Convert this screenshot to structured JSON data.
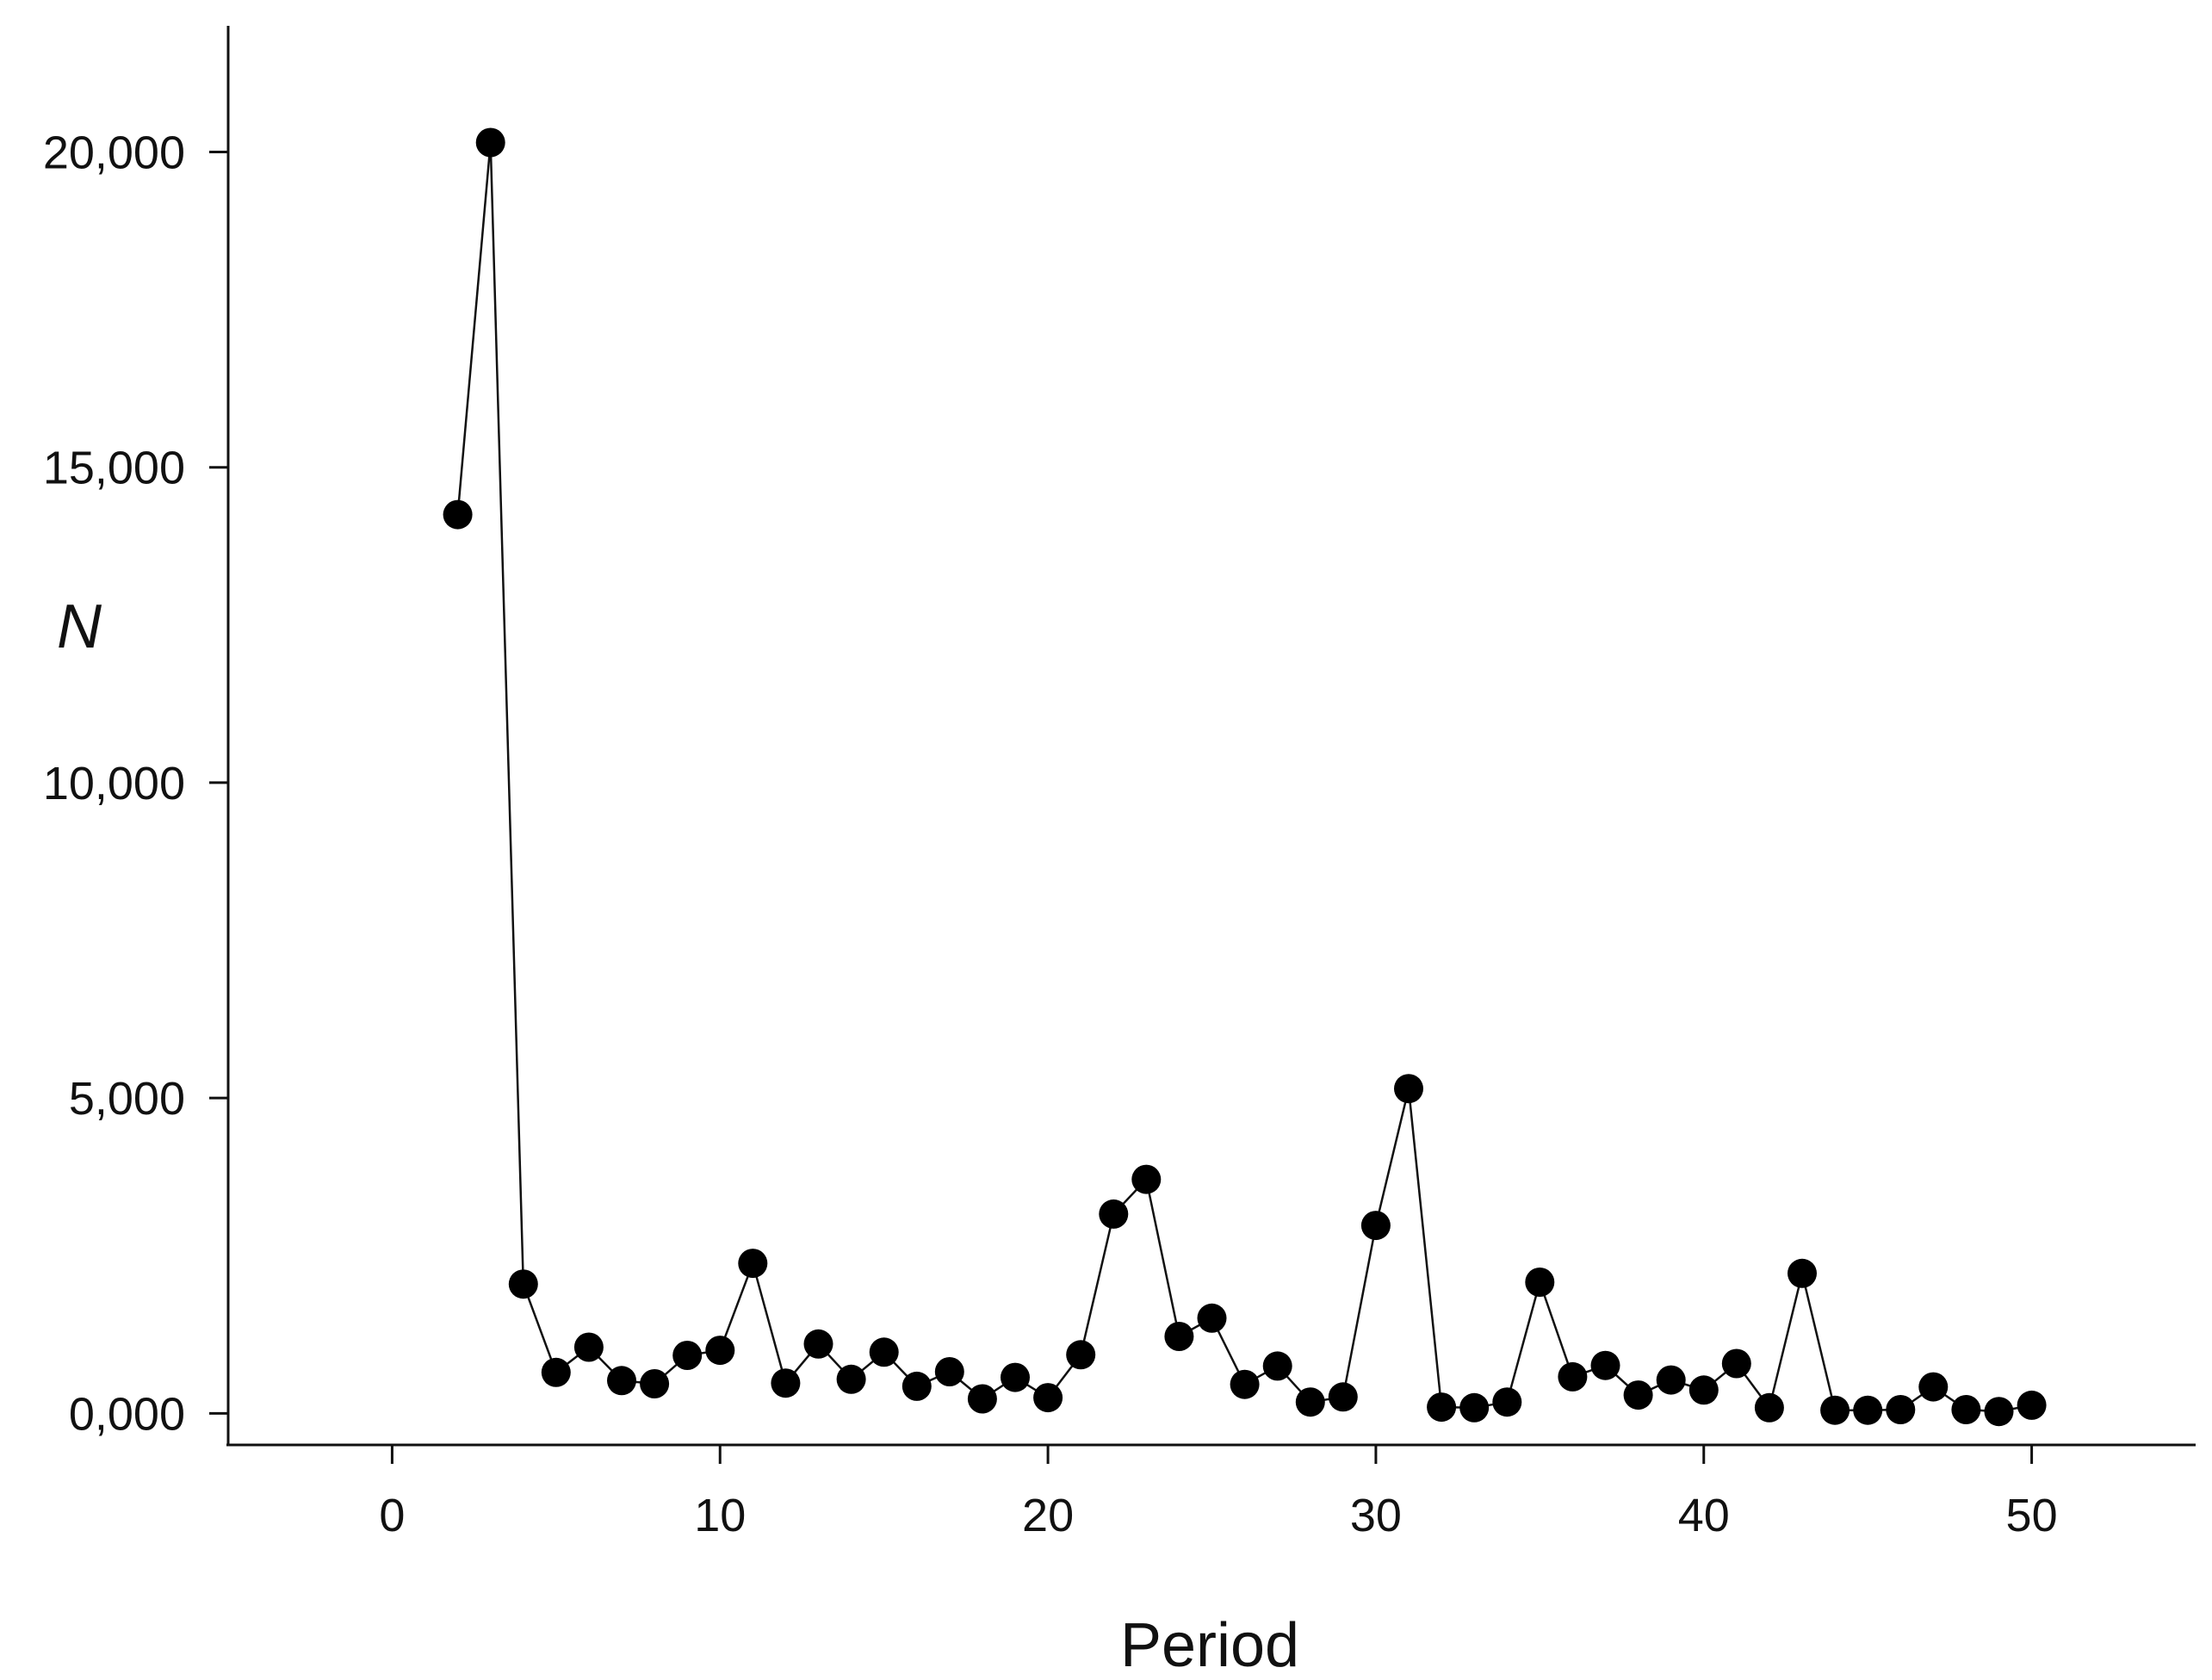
{
  "chart_data": {
    "type": "line",
    "title": "",
    "xlabel": "Period",
    "ylabel": "N",
    "xlim": [
      -5,
      55
    ],
    "ylim": [
      -500,
      22000
    ],
    "x_ticks": [
      0,
      10,
      20,
      30,
      40,
      50
    ],
    "x_tick_labels": [
      "0",
      "10",
      "20",
      "30",
      "40",
      "50"
    ],
    "y_ticks": [
      0,
      5000,
      10000,
      15000,
      20000
    ],
    "y_tick_labels": [
      "0,000",
      "5,000",
      "10,000",
      "15,000",
      "20,000"
    ],
    "grid": false,
    "legend": "none",
    "marker": "filled-circle",
    "colors": {
      "line": "#111111",
      "marker": "#000000",
      "axis": "#111111"
    },
    "series": [
      {
        "x": [
          2,
          3,
          4,
          5,
          6,
          7,
          8,
          9,
          10,
          11,
          12,
          13,
          14,
          15,
          16,
          17,
          18,
          19,
          20,
          21,
          22,
          23,
          24,
          25,
          26,
          27,
          28,
          29,
          30,
          31,
          32,
          33,
          34,
          35,
          36,
          37,
          38,
          39,
          40,
          41,
          42,
          43,
          44,
          45,
          46,
          47,
          48,
          49,
          50
        ],
        "y": [
          14250,
          20150,
          2050,
          650,
          1050,
          520,
          470,
          920,
          1000,
          2380,
          480,
          1100,
          540,
          970,
          430,
          660,
          230,
          570,
          250,
          930,
          3160,
          3710,
          1220,
          1510,
          460,
          750,
          180,
          260,
          2980,
          5150,
          100,
          90,
          180,
          2080,
          580,
          760,
          290,
          530,
          370,
          790,
          90,
          2220,
          50,
          50,
          60,
          420,
          60,
          30,
          130
        ]
      }
    ]
  }
}
